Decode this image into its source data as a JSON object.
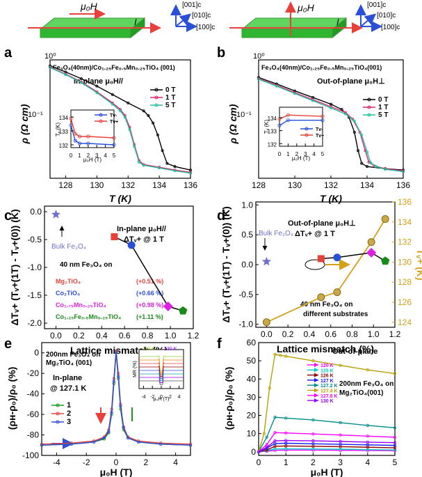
{
  "schematics": {
    "left": {
      "field": "μ₀H",
      "current": "I",
      "axes": [
        "[001]c",
        "[010]c",
        "[100]c"
      ]
    },
    "right": {
      "field": "μ₀H",
      "current": "I",
      "axes": [
        "[001]c",
        "[010]c",
        "[100]c"
      ]
    }
  },
  "panels": {
    "a": {
      "label": "a",
      "sample": "Fe₃O₄(40nm)/Co₁.₂₅Fe₀.₅Mn₀.₂₅TiO₄ (001)",
      "mode": "In-plane μ₀H//",
      "xlabel": "T (K)",
      "ylabel": "ρ (Ω cm)",
      "xticks": [
        "128",
        "130",
        "132",
        "134",
        "136"
      ],
      "yticks": [
        "10⁰",
        "10⁻¹"
      ],
      "legend": [
        "0 T",
        "1 T",
        "5 T"
      ],
      "inset": {
        "ylabel": "Tᵥ (K)",
        "xlabel": "μ₀H (T)",
        "yticks": [
          "132",
          "133",
          "134"
        ],
        "xticks": [
          "0",
          "1",
          "2",
          "3",
          "4",
          "5"
        ],
        "legend": [
          "Tv-",
          "Tv+"
        ]
      }
    },
    "b": {
      "label": "b",
      "sample": "Fe₃O₄(40nm)/Co₁.₂₅Fe₀.₅Mn₀.₂₅TiO₄(001)",
      "mode": "Out-of-plane μ₀H⊥",
      "xlabel": "T (K)",
      "ylabel": "ρ (Ω cm)",
      "xticks": [
        "128",
        "130",
        "132",
        "134",
        "136"
      ],
      "yticks": [
        "10⁰",
        "10⁻¹"
      ],
      "legend": [
        "0 T",
        "1 T",
        "5 T"
      ],
      "inset": {
        "ylabel": "Tᵥ (K)",
        "xlabel": "μ₀H (T)",
        "yticks": [
          "132",
          "133",
          "134"
        ],
        "xticks": [
          "0",
          "1",
          "2",
          "3",
          "4",
          "5"
        ],
        "legend": [
          "Tv-",
          "Tv+"
        ]
      }
    },
    "c": {
      "label": "c",
      "ylabel": "ΔTᵥ+ (Tᵥ+(1T) - Tᵥ+(0)) (K)",
      "xlabel": "Lattice mismatch (%)",
      "xticks": [
        "0.0",
        "0.2",
        "0.4",
        "0.6",
        "0.8",
        "1.0",
        "1.2"
      ],
      "yticks": [
        "0.0",
        "-0.5",
        "-1.0",
        "-1.5",
        "-2.0"
      ],
      "mode": "In-plane μ₀H//",
      "mode2": "ΔTᵥ+ @ 1 T",
      "bulk": "Bulk Fe₃O₄",
      "films": "40 nm Fe₃O₄ on",
      "substrates": [
        {
          "name": "Mg₂TiO₄",
          "value": "(+0.51 %)",
          "color": "#e8413a"
        },
        {
          "name": "Co₂TiO₄",
          "value": "(+0.66 %)",
          "color": "#2a4fd8"
        },
        {
          "name": "Co₁.₇₅Mn₀.₂₅TiO₄",
          "value": "(+0.98 %)",
          "color": "#e020e0"
        },
        {
          "name": "Co₁.₂₅Fe₀.₅Mn₀.₂₅TiO₄",
          "value": "(+1.11 %)",
          "color": "#1a8a1a"
        }
      ]
    },
    "d": {
      "label": "d",
      "ylabel": "ΔTᵥ+ (Tᵥ+(1T) - Tᵥ+(0)) (K)",
      "ylabel2": "Tᵥ+ (K)",
      "xlabel": "Lattice mismatch (%)",
      "xticks": [
        "0.0",
        "0.2",
        "0.4",
        "0.6",
        "0.8",
        "1.0",
        "1.2"
      ],
      "yticks": [
        "1.0",
        "0.5",
        "0.0",
        "-0.5",
        "-1.0"
      ],
      "y2ticks": [
        "124",
        "126",
        "128",
        "130",
        "132",
        "134",
        "136"
      ],
      "mode": "Out-of-plane μ₀H⊥",
      "mode2": "ΔTᵥ+ @ 1 T",
      "bulk": "Bulk Fe₃O₄",
      "films": "40 nm Fe₃O₄ on",
      "films2": "different substrates"
    },
    "e": {
      "label": "e",
      "ylabel": "(ρʜ-ρ₀)/ρ₀ (%)",
      "xlabel": "μ₀H (T)",
      "xticks": [
        "-4",
        "-2",
        "0",
        "2",
        "4"
      ],
      "yticks": [
        "0",
        "-20",
        "-40",
        "-60",
        "-80",
        "-100"
      ],
      "sample": "200nm Fe₃O₄ on",
      "sample2": "Mg₂TiO₄ (001)",
      "mode": "In-plane",
      "temp": "@ 127.1 K",
      "legend": [
        "1",
        "2",
        "3"
      ],
      "inset": {
        "ylabel": "MR (%)",
        "xlabel": "μ₀H (T)",
        "xticks": [
          "-4",
          "-2",
          "0",
          "2",
          "4"
        ],
        "legend": [
          "110 K",
          "130 K"
        ]
      }
    },
    "f": {
      "label": "f",
      "ylabel": "(ρʜ-ρ₀)/ρ₀ (%)",
      "xlabel": "μ₀H (T)",
      "xticks": [
        "0",
        "1",
        "2",
        "3",
        "4",
        "5"
      ],
      "yticks": [
        "60",
        "50",
        "40",
        "30",
        "20",
        "10",
        "0"
      ],
      "mode": "Out-of-plane",
      "sample": "200nm Fe₃O₄ on",
      "sample2": "Mg₂TiO₄(001)",
      "legend": [
        "120 K",
        "125 K",
        "126 K",
        "127 K",
        "127.2 K",
        "127.4 K",
        "127.8 K",
        "130 K"
      ]
    }
  },
  "chart_data": [
    {
      "type": "line",
      "id": "a",
      "title": "In-plane μ₀H//",
      "xlabel": "T (K)",
      "ylabel": "ρ (Ω cm)",
      "xlim": [
        127,
        136
      ],
      "ylim": [
        0.04,
        1.0
      ],
      "yscale": "log",
      "series": [
        {
          "name": "0 T",
          "color": "#000000",
          "x": [
            127,
            128,
            129,
            130,
            131,
            132,
            133,
            133.3,
            133.6,
            133.9,
            134.2,
            134.5,
            135,
            136
          ],
          "values": [
            0.85,
            0.72,
            0.6,
            0.49,
            0.39,
            0.31,
            0.25,
            0.22,
            0.18,
            0.13,
            0.085,
            0.06,
            0.055,
            0.05
          ]
        },
        {
          "name": "1 T",
          "color": "#e0206b",
          "x": [
            127,
            128,
            129,
            130,
            131,
            131.5,
            131.8,
            132.1,
            132.4,
            132.7,
            133,
            134,
            135,
            136
          ],
          "values": [
            0.82,
            0.68,
            0.55,
            0.42,
            0.31,
            0.26,
            0.22,
            0.16,
            0.1,
            0.065,
            0.058,
            0.054,
            0.05,
            0.047
          ]
        },
        {
          "name": "5 T",
          "color": "#20c0a0",
          "x": [
            127,
            128,
            129,
            130,
            131,
            131.5,
            131.8,
            132.1,
            132.4,
            132.7,
            133,
            134,
            135,
            136
          ],
          "values": [
            0.81,
            0.67,
            0.54,
            0.41,
            0.3,
            0.25,
            0.21,
            0.15,
            0.095,
            0.062,
            0.057,
            0.053,
            0.049,
            0.046
          ]
        }
      ]
    },
    {
      "type": "line",
      "id": "a-inset",
      "xlabel": "μ₀H (T)",
      "ylabel": "Tᵥ (K)",
      "xlim": [
        0,
        5
      ],
      "ylim": [
        131.8,
        134.5
      ],
      "series": [
        {
          "name": "Tv-",
          "color": "#2a4fd8",
          "x": [
            0,
            0.5,
            1,
            2,
            5
          ],
          "values": [
            133.4,
            132.3,
            132.1,
            132.1,
            132.0
          ]
        },
        {
          "name": "Tv+",
          "color": "#e8413a",
          "x": [
            0,
            0.5,
            1,
            2,
            5
          ],
          "values": [
            133.9,
            132.8,
            132.6,
            132.6,
            132.5
          ]
        }
      ]
    },
    {
      "type": "line",
      "id": "b",
      "title": "Out-of-plane μ₀H⊥",
      "xlabel": "T (K)",
      "ylabel": "ρ (Ω cm)",
      "xlim": [
        128,
        136
      ],
      "ylim": [
        0.04,
        1.0
      ],
      "yscale": "log",
      "series": [
        {
          "name": "0 T",
          "color": "#000000",
          "x": [
            128,
            129,
            130,
            131,
            132,
            132.6,
            133,
            133.3,
            133.5,
            133.7,
            134,
            135,
            136
          ],
          "values": [
            0.62,
            0.52,
            0.43,
            0.36,
            0.3,
            0.26,
            0.21,
            0.14,
            0.085,
            0.06,
            0.055,
            0.052,
            0.05
          ]
        },
        {
          "name": "1 T",
          "color": "#e0206b",
          "x": [
            128,
            129,
            130,
            131,
            132,
            132.8,
            133.2,
            133.6,
            133.9,
            134.1,
            134.4,
            135,
            136
          ],
          "values": [
            0.6,
            0.5,
            0.41,
            0.34,
            0.28,
            0.24,
            0.2,
            0.14,
            0.085,
            0.062,
            0.056,
            0.052,
            0.049
          ]
        },
        {
          "name": "5 T",
          "color": "#20c0a0",
          "x": [
            128,
            129,
            130,
            131,
            132,
            132.8,
            133.3,
            133.7,
            134,
            134.2,
            134.5,
            135,
            136
          ],
          "values": [
            0.59,
            0.49,
            0.4,
            0.33,
            0.27,
            0.23,
            0.19,
            0.13,
            0.082,
            0.061,
            0.055,
            0.051,
            0.048
          ]
        }
      ]
    },
    {
      "type": "line",
      "id": "b-inset",
      "xlabel": "μ₀H (T)",
      "ylabel": "Tᵥ (K)",
      "xlim": [
        0,
        5
      ],
      "ylim": [
        131.8,
        134.8
      ],
      "series": [
        {
          "name": "Tv-",
          "color": "#2a4fd8",
          "x": [
            0,
            1,
            5
          ],
          "values": [
            133.4,
            133.8,
            133.8
          ]
        },
        {
          "name": "Tv+",
          "color": "#e8413a",
          "x": [
            0,
            1,
            5
          ],
          "values": [
            133.9,
            134.2,
            134.1
          ]
        }
      ]
    },
    {
      "type": "scatter",
      "id": "c",
      "xlabel": "Lattice mismatch (%)",
      "ylabel": "ΔTᵥ+ (K)",
      "xlim": [
        -0.1,
        1.2
      ],
      "ylim": [
        -2.1,
        0.1
      ],
      "points": [
        {
          "name": "Bulk Fe₃O₄",
          "x": 0.0,
          "y": -0.05,
          "color": "#6f6fd0",
          "marker": "star"
        },
        {
          "name": "Mg₂TiO₄",
          "x": 0.51,
          "y": -0.45,
          "color": "#e8413a",
          "marker": "square"
        },
        {
          "name": "Co₂TiO₄",
          "x": 0.66,
          "y": -0.6,
          "color": "#2a4fd8",
          "marker": "circle"
        },
        {
          "name": "Co₁.₇₅Mn₀.₂₅TiO₄",
          "x": 0.98,
          "y": -1.7,
          "color": "#e020e0",
          "marker": "diamond"
        },
        {
          "name": "Co₁.₂₅Fe₀.₅Mn₀.₂₅TiO₄",
          "x": 1.11,
          "y": -1.78,
          "color": "#1a8a1a",
          "marker": "pentagon"
        }
      ]
    },
    {
      "type": "scatter",
      "id": "d",
      "xlabel": "Lattice mismatch (%)",
      "ylabel": "ΔTᵥ+ (K)",
      "ylabel2": "Tᵥ+ (K)",
      "xlim": [
        -0.1,
        1.2
      ],
      "ylim": [
        -1.05,
        1.05
      ],
      "y2lim": [
        123.5,
        136
      ],
      "points": [
        {
          "name": "Bulk Fe₃O₄",
          "x": 0.0,
          "y": 0.05,
          "color": "#6f6fd0",
          "marker": "star"
        },
        {
          "name": "Mg₂TiO₄",
          "x": 0.51,
          "y": 0.1,
          "color": "#e8413a",
          "marker": "square"
        },
        {
          "name": "Co₂TiO₄",
          "x": 0.66,
          "y": 0.12,
          "color": "#2a4fd8",
          "marker": "circle"
        },
        {
          "name": "Co₁.₇₅Mn₀.₂₅TiO₄",
          "x": 0.98,
          "y": 0.2,
          "color": "#e020e0",
          "marker": "diamond"
        },
        {
          "name": "Co₁.₂₅Fe₀.₅Mn₀.₂₅TiO₄",
          "x": 1.11,
          "y": 0.06,
          "color": "#1a8a1a",
          "marker": "pentagon"
        }
      ],
      "series2": {
        "name": "Tᵥ+",
        "color": "#d4a017",
        "x": [
          0.0,
          0.51,
          0.66,
          0.98,
          1.11
        ],
        "values": [
          124.0,
          126.5,
          127.0,
          132.0,
          134.3
        ]
      }
    },
    {
      "type": "line",
      "id": "e",
      "xlabel": "μ₀H (T)",
      "ylabel": "(ρʜ-ρ₀)/ρ₀ (%)",
      "xlim": [
        -5,
        5
      ],
      "ylim": [
        -100,
        10
      ],
      "series": [
        {
          "name": "1",
          "color": "#1a9a1a",
          "x": [
            -5,
            -3,
            -1.5,
            -0.8,
            -0.5,
            -0.3,
            -0.15,
            0,
            0.15,
            0.3,
            0.5,
            0.8,
            1.5,
            3,
            5
          ],
          "values": [
            -90,
            -89,
            -87,
            -84,
            -78,
            -60,
            -30,
            0,
            -25,
            -55,
            -75,
            -83,
            -87,
            -89,
            -90
          ]
        },
        {
          "name": "2",
          "color": "#e8413a",
          "x": [
            -5,
            -3,
            -1.5,
            -0.8,
            -0.5,
            -0.3,
            -0.15,
            0,
            0.15,
            0.3,
            0.5,
            0.8,
            1.5,
            3,
            5
          ],
          "values": [
            -89,
            -88,
            -86,
            -82,
            -75,
            -55,
            -25,
            2,
            -20,
            -50,
            -72,
            -82,
            -86,
            -88,
            -89
          ]
        },
        {
          "name": "3",
          "color": "#2a4fd8",
          "x": [
            -5,
            -3,
            -1.5,
            -0.8,
            -0.5,
            -0.3,
            -0.15,
            0,
            0.15,
            0.3,
            0.5,
            0.8,
            1.5,
            3,
            5
          ],
          "values": [
            -90,
            -89,
            -87,
            -83,
            -77,
            -58,
            -28,
            1,
            -23,
            -52,
            -73,
            -83,
            -87,
            -89,
            -90
          ]
        }
      ]
    },
    {
      "type": "line",
      "id": "f",
      "xlabel": "μ₀H (T)",
      "ylabel": "(ρʜ-ρ₀)/ρ₀ (%)",
      "xlim": [
        0,
        5
      ],
      "ylim": [
        -2,
        60
      ],
      "series": [
        {
          "name": "120 K",
          "color": "#ff00ff",
          "x": [
            0,
            0.3,
            0.6,
            1,
            2,
            3,
            4,
            5
          ],
          "values": [
            0,
            0.3,
            0.8,
            0.9,
            0.9,
            0.8,
            0.7,
            0.6
          ]
        },
        {
          "name": "125 K",
          "color": "#00c8c8",
          "x": [
            0,
            0.3,
            0.6,
            1,
            2,
            3,
            4,
            5
          ],
          "values": [
            0,
            0.6,
            1.5,
            1.6,
            1.5,
            1.4,
            1.2,
            1.0
          ]
        },
        {
          "name": "126 K",
          "color": "#8b0000",
          "x": [
            0,
            0.3,
            0.6,
            1,
            2,
            3,
            4,
            5
          ],
          "values": [
            0,
            1,
            3,
            3.2,
            3.0,
            2.8,
            2.5,
            2.2
          ]
        },
        {
          "name": "127 K",
          "color": "#1a1aff",
          "x": [
            0,
            0.3,
            0.6,
            1,
            2,
            3,
            4,
            5
          ],
          "values": [
            0,
            2,
            4.5,
            4.7,
            4.4,
            4.1,
            3.8,
            3.5
          ]
        },
        {
          "name": "127.2 K",
          "color": "#008b8b",
          "x": [
            0,
            0.3,
            0.6,
            1,
            2,
            3,
            4,
            5
          ],
          "values": [
            0,
            8,
            19,
            18.5,
            17.5,
            16,
            14.5,
            13.2
          ]
        },
        {
          "name": "127.4 K",
          "color": "#b8a000",
          "x": [
            0,
            0.2,
            0.4,
            0.6,
            0.8,
            1,
            2,
            3,
            4,
            5
          ],
          "values": [
            0,
            10,
            35,
            53.5,
            53,
            52.5,
            50,
            47.5,
            45,
            43
          ]
        },
        {
          "name": "127.8 K",
          "color": "#ff00ff",
          "x": [
            0,
            0.3,
            0.6,
            1,
            2,
            3,
            4,
            5
          ],
          "values": [
            0,
            4,
            10.5,
            10.3,
            9.8,
            9.2,
            8.6,
            8.0
          ]
        },
        {
          "name": "130 K",
          "color": "#9a00ff",
          "x": [
            0,
            0.3,
            0.6,
            1,
            2,
            3,
            4,
            5
          ],
          "values": [
            0,
            2.5,
            6,
            6.2,
            6,
            5.7,
            5.3,
            5.0
          ]
        }
      ]
    }
  ]
}
